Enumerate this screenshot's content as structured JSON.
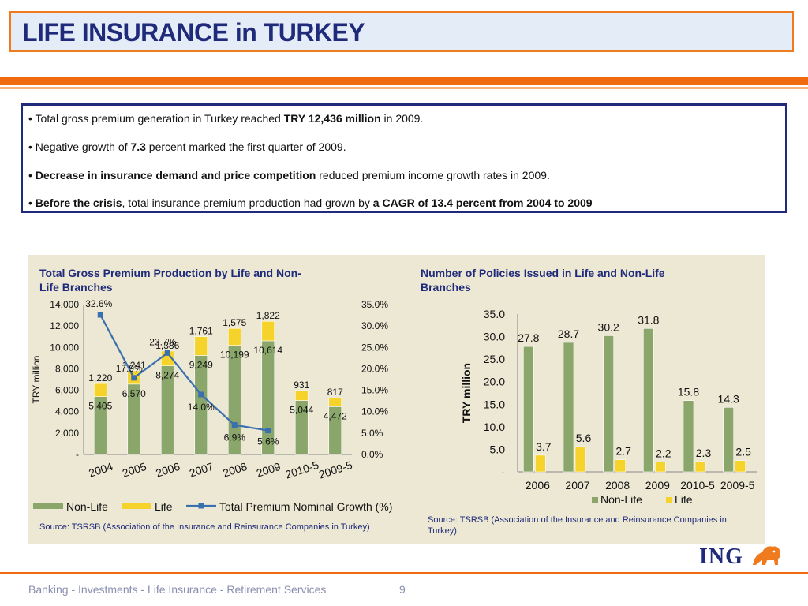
{
  "title": "LIFE INSURANCE in TURKEY",
  "bullets": [
    {
      "parts": [
        {
          "t": "• Total gross premium generation in Turkey reached ",
          "b": false
        },
        {
          "t": "TRY 12,436 million",
          "b": true
        },
        {
          "t": " in 2009.",
          "b": false
        }
      ]
    },
    {
      "parts": [
        {
          "t": "• Negative growth of ",
          "b": false
        },
        {
          "t": "7.3",
          "b": true
        },
        {
          "t": " percent marked the first quarter of 2009.",
          "b": false
        }
      ]
    },
    {
      "parts": [
        {
          "t": "• ",
          "b": false
        },
        {
          "t": "Decrease in insurance demand and price competition",
          "b": true
        },
        {
          "t": "  reduced premium income growth rates in 2009.",
          "b": false
        }
      ]
    },
    {
      "parts": [
        {
          "t": "• ",
          "b": false
        },
        {
          "t": "Before the crisis",
          "b": true
        },
        {
          "t": ", total insurance premium production  had grown by ",
          "b": false
        },
        {
          "t": "a CAGR of 13.4 percent from 2004 to 2009",
          "b": true
        }
      ]
    }
  ],
  "chart1": {
    "title_line1": "Total Gross Premium Production by Life and Non-",
    "title_line2": "Life Branches",
    "source": "Source: TSRSB (Association of the Insurance and Reinsurance Companies in Turkey)"
  },
  "chart2": {
    "title_line1": "Number of Policies Issued in Life and Non-Life",
    "title_line2": "Branches",
    "source_line1": "Source: TSRSB (Association of the Insurance and Reinsurance Companies in",
    "source_line2": "Turkey)"
  },
  "chart_data": [
    {
      "type": "bar",
      "stacked": true,
      "title": "Total Gross Premium Production by Life and Non-Life Branches",
      "categories": [
        "2004",
        "2005",
        "2006",
        "2007",
        "2008",
        "2009",
        "2010-5",
        "2009-5"
      ],
      "ylabel": "TRY million",
      "ylim": [
        0,
        14000
      ],
      "yticks": [
        "-",
        "2,000",
        "4,000",
        "6,000",
        "8,000",
        "10,000",
        "12,000",
        "14,000"
      ],
      "y2lim": [
        0,
        35
      ],
      "y2ticks": [
        "0.0%",
        "5.0%",
        "10.0%",
        "15.0%",
        "20.0%",
        "25.0%",
        "30.0%",
        "35.0%"
      ],
      "series": [
        {
          "name": "Non-Life",
          "values": [
            5405,
            6570,
            8274,
            9249,
            10199,
            10614,
            5044,
            4472
          ],
          "labels": [
            "5,405",
            "6,570",
            "8,274",
            "9,249",
            "10,199",
            "10,614",
            "5,044",
            "4,472"
          ],
          "color": "#8aa66a"
        },
        {
          "name": "Life",
          "values": [
            1220,
            1241,
            1386,
            1761,
            1575,
            1822,
            931,
            817
          ],
          "labels": [
            "1,220",
            "1,241",
            "1,386",
            "1,761",
            "1,575",
            "1,822",
            "931",
            "817"
          ],
          "color": "#f6d32a"
        }
      ],
      "line_series": {
        "name": "Total Premium Nominal Growth (%)",
        "values": [
          32.6,
          17.9,
          23.7,
          14.0,
          6.9,
          5.6
        ],
        "labels": [
          "32.6%",
          "17.9%",
          "23.7%",
          "14.0%",
          "6.9%",
          "5.6%"
        ],
        "color": "#3a6fb0"
      },
      "legend": "bottom"
    },
    {
      "type": "bar",
      "title": "Number of Policies Issued in Life and Non-Life Branches",
      "categories": [
        "2006",
        "2007",
        "2008",
        "2009",
        "2010-5",
        "2009-5"
      ],
      "ylabel": "TRY million",
      "ylim": [
        0,
        35
      ],
      "yticks": [
        "-",
        "5.0",
        "10.0",
        "15.0",
        "20.0",
        "25.0",
        "30.0",
        "35.0"
      ],
      "series": [
        {
          "name": "Non-Life",
          "values": [
            27.8,
            28.7,
            30.2,
            31.8,
            15.8,
            14.3
          ],
          "labels": [
            "27.8",
            "28.7",
            "30.2",
            "31.8",
            "15.8",
            "14.3"
          ],
          "color": "#8aa66a"
        },
        {
          "name": "Life",
          "values": [
            3.7,
            5.6,
            2.7,
            2.2,
            2.3,
            2.5
          ],
          "labels": [
            "3.7",
            "5.6",
            "2.7",
            "2.2",
            "2.3",
            "2.5"
          ],
          "color": "#f6d32a"
        }
      ],
      "legend": "bottom"
    }
  ],
  "footer": {
    "text": "Banking - Investments - Life Insurance - Retirement Services",
    "page": "9",
    "logo": "ING"
  }
}
